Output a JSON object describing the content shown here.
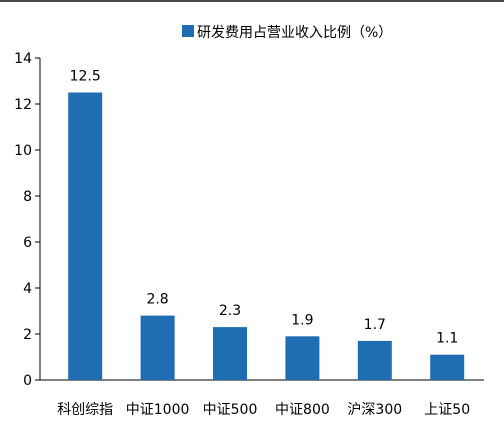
{
  "chart_data": {
    "type": "bar",
    "categories": [
      "科创综指",
      "中证1000",
      "中证500",
      "中证800",
      "沪深300",
      "上证50"
    ],
    "series": [
      {
        "name": "研发费用占营业收入比例（%）",
        "values": [
          12.5,
          2.8,
          2.3,
          1.9,
          1.7,
          1.1
        ]
      }
    ],
    "y_ticks": [
      0,
      2,
      4,
      6,
      8,
      10,
      12,
      14
    ],
    "ylim": [
      0,
      14
    ],
    "title": "",
    "xlabel": "",
    "ylabel": "",
    "legend": "top",
    "grid": false,
    "data_labels_shown": true,
    "colors": {
      "bar": "#1f6db3",
      "axis": "#000000"
    }
  }
}
